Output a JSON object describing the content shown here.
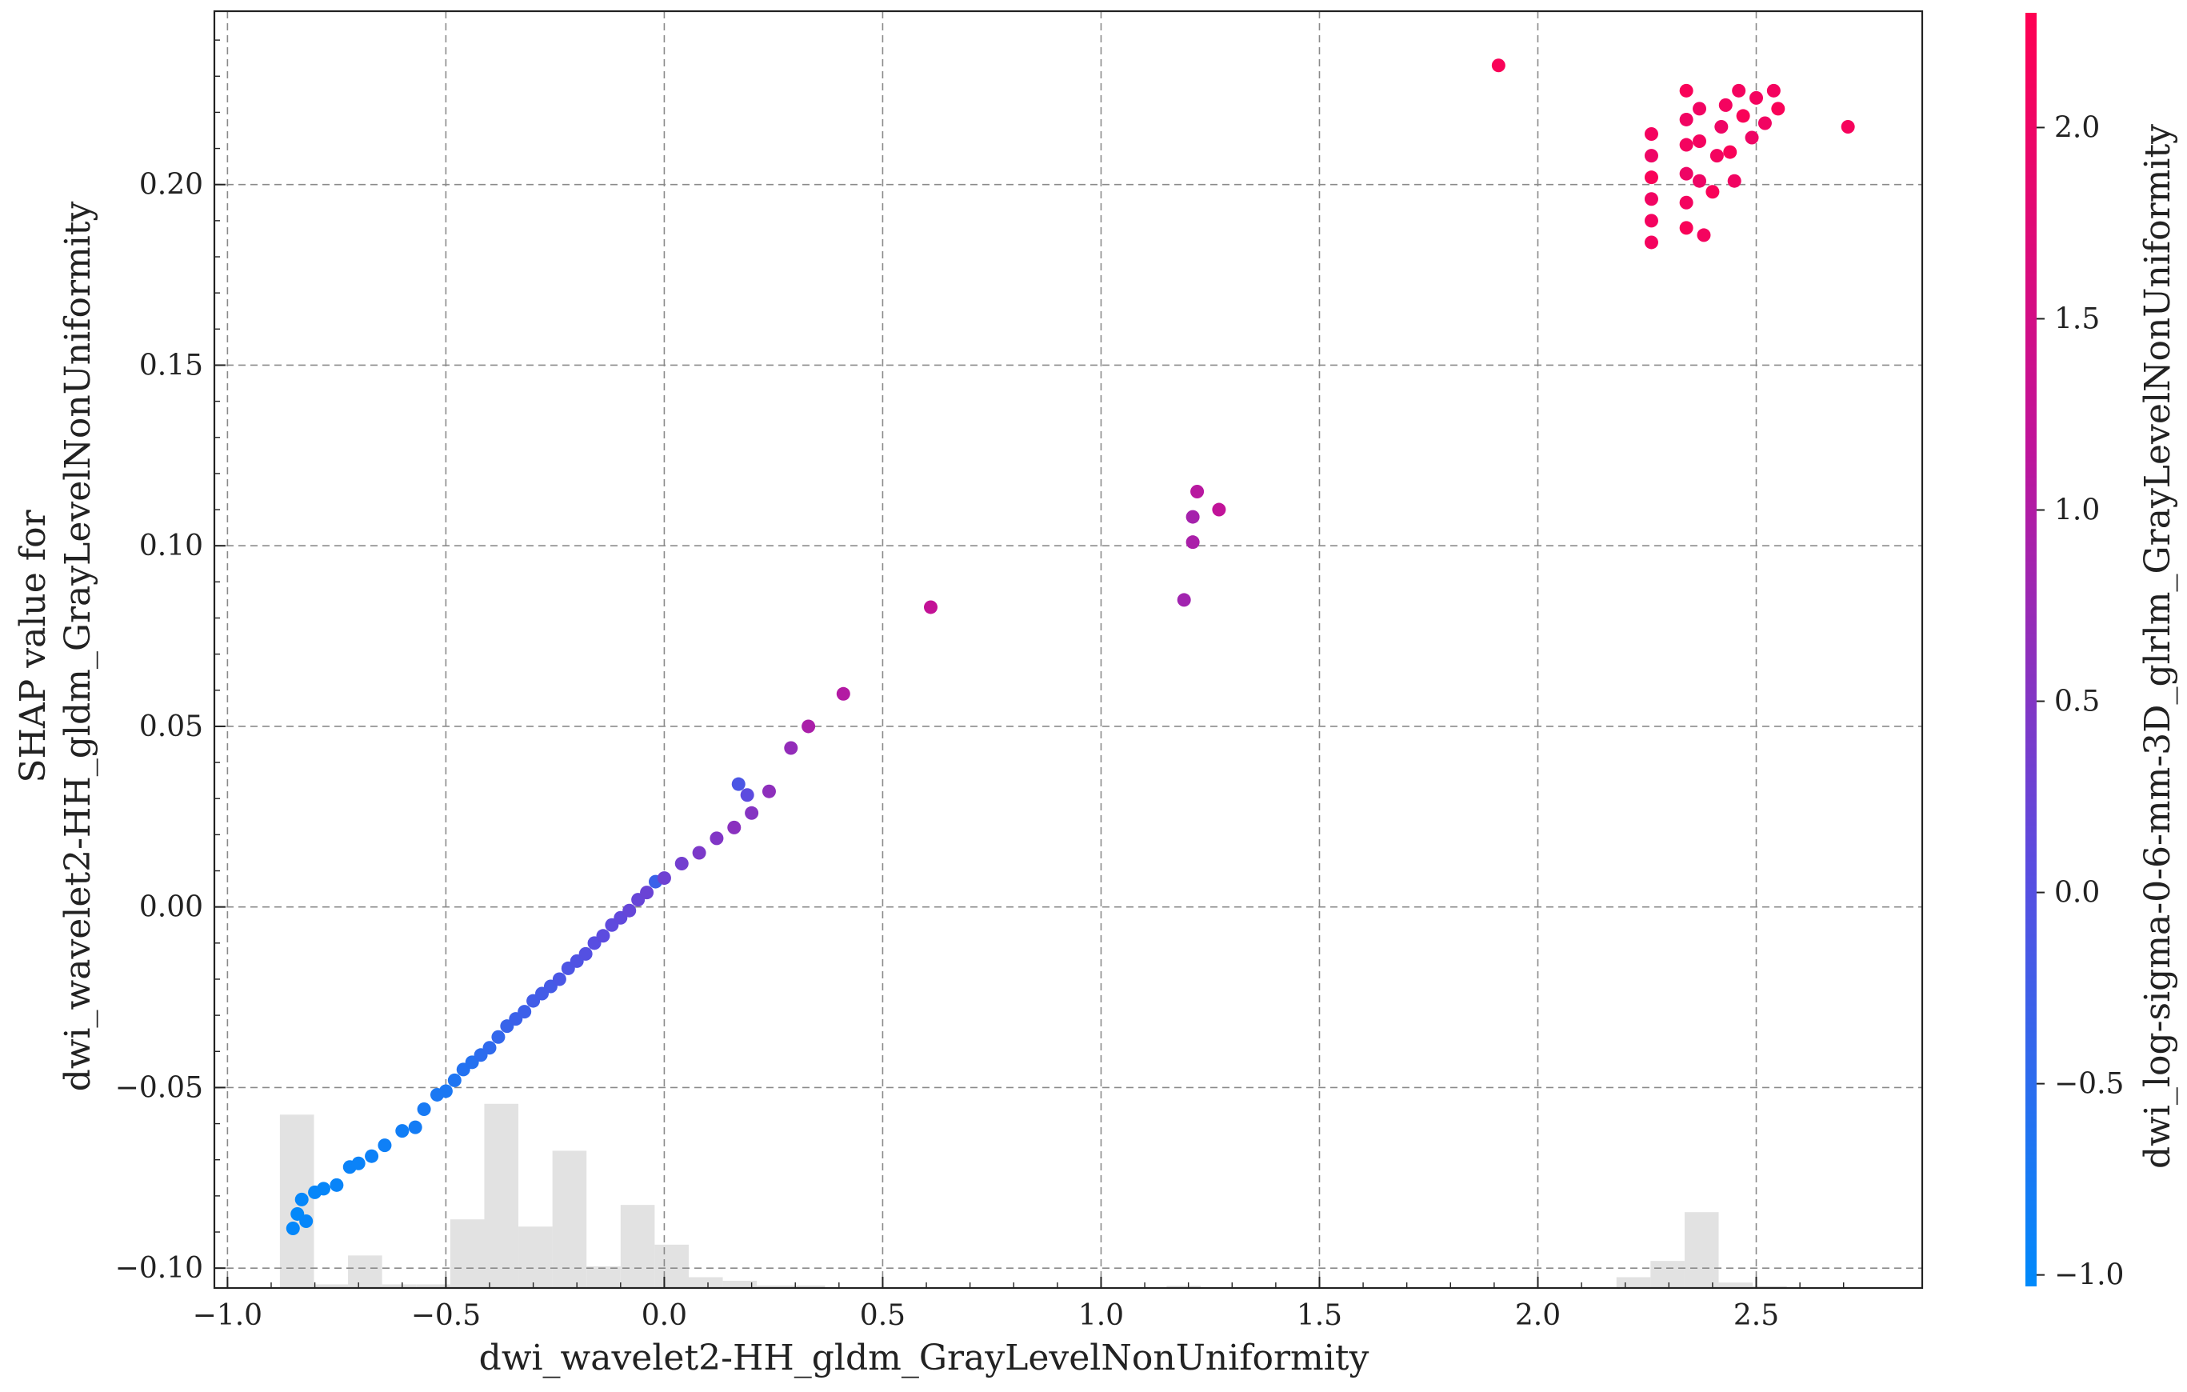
{
  "chart_data": {
    "type": "scatter",
    "title": "",
    "xlabel": "dwi_wavelet2-HH_gldm_GrayLevelNonUniformity",
    "ylabel_lines": [
      "SHAP value for",
      "dwi_wavelet2-HH_gldm_GrayLevelNonUniformity"
    ],
    "colorbar_label": "dwi_log-sigma-0-6-mm-3D_glrlm_GrayLevelNonUniformity",
    "xlim": [
      -1.03,
      2.88
    ],
    "ylim": [
      -0.1055,
      0.248
    ],
    "clim": [
      -1.03,
      2.3
    ],
    "grid": true,
    "colormap": [
      "#008afb",
      "#5a4ce0",
      "#c0139a",
      "#ff0052"
    ],
    "x_ticks": [
      {
        "value": -1.0,
        "label": "−1.0"
      },
      {
        "value": -0.5,
        "label": "−0.5"
      },
      {
        "value": 0.0,
        "label": "0.0"
      },
      {
        "value": 0.5,
        "label": "0.5"
      },
      {
        "value": 1.0,
        "label": "1.0"
      },
      {
        "value": 1.5,
        "label": "1.5"
      },
      {
        "value": 2.0,
        "label": "2.0"
      },
      {
        "value": 2.5,
        "label": "2.5"
      }
    ],
    "y_ticks": [
      {
        "value": -0.1,
        "label": "−0.10"
      },
      {
        "value": -0.05,
        "label": "−0.05"
      },
      {
        "value": 0.0,
        "label": "0.00"
      },
      {
        "value": 0.05,
        "label": "0.05"
      },
      {
        "value": 0.1,
        "label": "0.10"
      },
      {
        "value": 0.15,
        "label": "0.15"
      },
      {
        "value": 0.2,
        "label": "0.20"
      }
    ],
    "colorbar_ticks": [
      {
        "value": -1.0,
        "label": "−1.0"
      },
      {
        "value": -0.5,
        "label": "−0.5"
      },
      {
        "value": 0.0,
        "label": "0.0"
      },
      {
        "value": 0.5,
        "label": "0.5"
      },
      {
        "value": 1.0,
        "label": "1.0"
      },
      {
        "value": 1.5,
        "label": "1.5"
      },
      {
        "value": 2.0,
        "label": "2.0"
      }
    ],
    "histogram": {
      "bin_width": 0.078,
      "bins": [
        {
          "x0": -0.88,
          "h": 0.048
        },
        {
          "x0": -0.802,
          "h": 0.001
        },
        {
          "x0": -0.724,
          "h": 0.009
        },
        {
          "x0": -0.646,
          "h": 0.001
        },
        {
          "x0": -0.568,
          "h": 0.001
        },
        {
          "x0": -0.49,
          "h": 0.019
        },
        {
          "x0": -0.412,
          "h": 0.051
        },
        {
          "x0": -0.334,
          "h": 0.017
        },
        {
          "x0": -0.256,
          "h": 0.038
        },
        {
          "x0": -0.178,
          "h": 0.006
        },
        {
          "x0": -0.1,
          "h": 0.023
        },
        {
          "x0": -0.022,
          "h": 0.012
        },
        {
          "x0": 0.056,
          "h": 0.003
        },
        {
          "x0": 0.134,
          "h": 0.002
        },
        {
          "x0": 0.212,
          "h": 0.0007
        },
        {
          "x0": 0.29,
          "h": 0.0007
        },
        {
          "x0": 1.15,
          "h": 0.0006
        },
        {
          "x0": 2.18,
          "h": 0.003
        },
        {
          "x0": 2.258,
          "h": 0.0075
        },
        {
          "x0": 2.336,
          "h": 0.021
        },
        {
          "x0": 2.414,
          "h": 0.0015
        },
        {
          "x0": 2.492,
          "h": 0.0005
        }
      ]
    },
    "band_points": [
      [
        -0.85,
        -0.089,
        -0.98
      ],
      [
        -0.84,
        -0.085,
        -0.99
      ],
      [
        -0.83,
        -0.081,
        -0.97
      ],
      [
        -0.82,
        -0.087,
        -0.96
      ],
      [
        -0.8,
        -0.079,
        -0.95
      ],
      [
        -0.78,
        -0.078,
        -0.96
      ],
      [
        -0.75,
        -0.077,
        -0.92
      ],
      [
        -0.72,
        -0.072,
        -0.9
      ],
      [
        -0.7,
        -0.071,
        -0.9
      ],
      [
        -0.67,
        -0.069,
        -0.87
      ],
      [
        -0.64,
        -0.066,
        -0.85
      ],
      [
        -0.6,
        -0.062,
        -0.82
      ],
      [
        -0.57,
        -0.061,
        -0.78
      ],
      [
        -0.55,
        -0.056,
        -0.74
      ],
      [
        -0.52,
        -0.052,
        -0.7
      ],
      [
        -0.5,
        -0.051,
        -0.7
      ],
      [
        -0.48,
        -0.048,
        -0.66
      ],
      [
        -0.46,
        -0.045,
        -0.6
      ],
      [
        -0.44,
        -0.043,
        -0.58
      ],
      [
        -0.42,
        -0.041,
        -0.5
      ],
      [
        -0.4,
        -0.039,
        -0.45
      ],
      [
        -0.38,
        -0.036,
        -0.4
      ],
      [
        -0.36,
        -0.033,
        -0.35
      ],
      [
        -0.34,
        -0.031,
        -0.3
      ],
      [
        -0.32,
        -0.029,
        -0.28
      ],
      [
        -0.3,
        -0.026,
        -0.22
      ],
      [
        -0.28,
        -0.024,
        -0.2
      ],
      [
        -0.26,
        -0.022,
        -0.18
      ],
      [
        -0.24,
        -0.02,
        -0.12
      ],
      [
        -0.22,
        -0.017,
        -0.08
      ],
      [
        -0.2,
        -0.015,
        -0.05
      ],
      [
        -0.18,
        -0.013,
        0.0
      ],
      [
        -0.16,
        -0.01,
        0.05
      ],
      [
        -0.14,
        -0.008,
        0.1
      ],
      [
        -0.12,
        -0.005,
        0.12
      ],
      [
        -0.1,
        -0.003,
        0.15
      ],
      [
        -0.08,
        -0.001,
        0.2
      ],
      [
        -0.06,
        0.002,
        0.22
      ],
      [
        -0.04,
        0.004,
        0.25
      ],
      [
        -0.02,
        0.007,
        -0.3
      ],
      [
        0.0,
        0.008,
        0.3
      ],
      [
        0.04,
        0.012,
        0.35
      ],
      [
        0.08,
        0.015,
        0.45
      ],
      [
        0.12,
        0.019,
        0.5
      ],
      [
        0.16,
        0.022,
        0.6
      ],
      [
        0.2,
        0.026,
        0.55
      ],
      [
        0.24,
        0.032,
        0.65
      ],
      [
        0.29,
        0.044,
        0.7
      ],
      [
        0.33,
        0.05,
        0.95
      ],
      [
        0.17,
        0.034,
        -0.1
      ],
      [
        0.19,
        0.031,
        0.1
      ]
    ],
    "outlier_points": [
      [
        0.41,
        0.059,
        1.05
      ],
      [
        0.61,
        0.083,
        1.25
      ],
      [
        1.19,
        0.085,
        0.85
      ],
      [
        1.21,
        0.108,
        0.9
      ],
      [
        1.22,
        0.115,
        1.1
      ],
      [
        1.21,
        0.101,
        0.95
      ],
      [
        1.27,
        0.11,
        1.2
      ],
      [
        1.91,
        0.233,
        2.2
      ],
      [
        2.71,
        0.216,
        2.15
      ]
    ],
    "cluster_points": [
      [
        2.26,
        0.184,
        2.1
      ],
      [
        2.26,
        0.19,
        2.1
      ],
      [
        2.26,
        0.196,
        2.05
      ],
      [
        2.26,
        0.202,
        2.2
      ],
      [
        2.26,
        0.208,
        2.0
      ],
      [
        2.26,
        0.214,
        2.1
      ],
      [
        2.34,
        0.188,
        2.2
      ],
      [
        2.34,
        0.195,
        2.1
      ],
      [
        2.34,
        0.203,
        2.0
      ],
      [
        2.34,
        0.211,
        2.1
      ],
      [
        2.34,
        0.218,
        2.05
      ],
      [
        2.34,
        0.226,
        2.2
      ],
      [
        2.37,
        0.201,
        2.0
      ],
      [
        2.37,
        0.212,
        2.1
      ],
      [
        2.37,
        0.221,
        2.05
      ],
      [
        2.38,
        0.186,
        2.1
      ],
      [
        2.4,
        0.198,
        2.2
      ],
      [
        2.41,
        0.208,
        2.1
      ],
      [
        2.42,
        0.216,
        2.0
      ],
      [
        2.43,
        0.222,
        2.1
      ],
      [
        2.44,
        0.209,
        2.2
      ],
      [
        2.45,
        0.201,
        2.05
      ],
      [
        2.46,
        0.226,
        2.1
      ],
      [
        2.47,
        0.219,
        2.2
      ],
      [
        2.49,
        0.213,
        2.0
      ],
      [
        2.5,
        0.224,
        2.1
      ],
      [
        2.52,
        0.217,
        2.05
      ],
      [
        2.54,
        0.226,
        2.1
      ],
      [
        2.55,
        0.221,
        2.2
      ]
    ]
  }
}
